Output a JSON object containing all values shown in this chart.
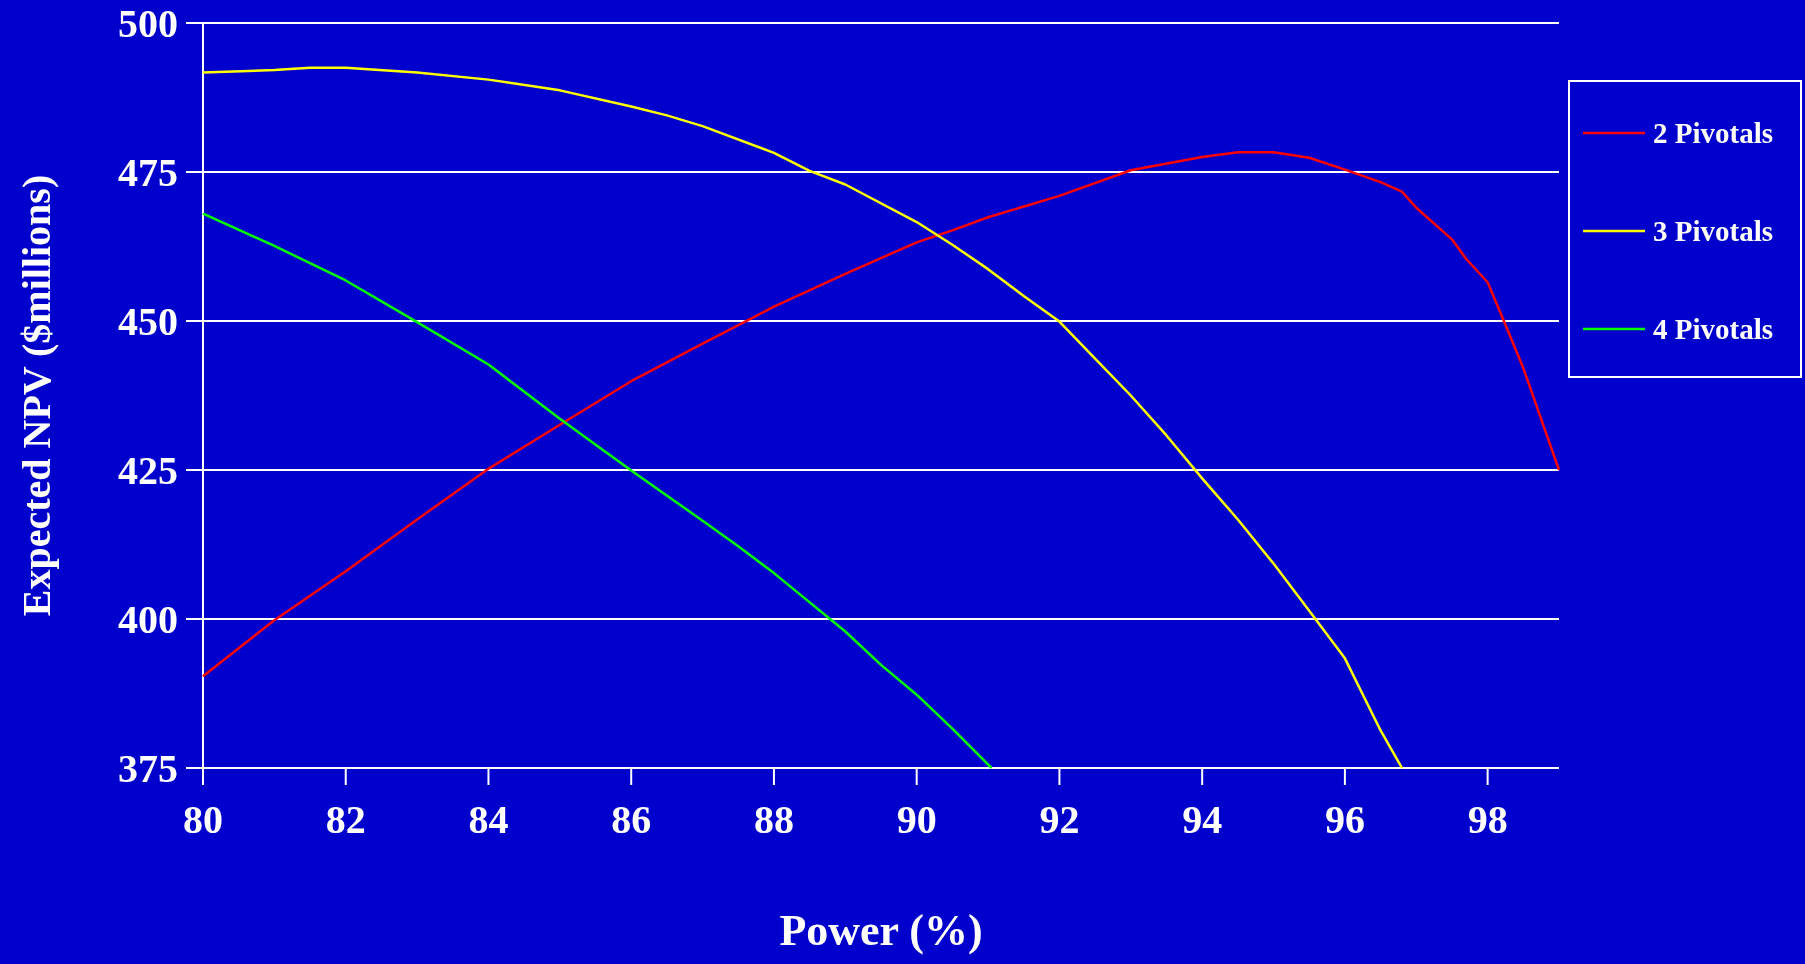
{
  "chart_data": {
    "type": "line",
    "xlabel": "Power (%)",
    "ylabel": "Expected NPV ($millions)",
    "xlim": [
      80,
      99
    ],
    "xticks": [
      80,
      82,
      84,
      86,
      88,
      90,
      92,
      94,
      96,
      98
    ],
    "ylim": [
      375,
      500
    ],
    "yticks": [
      375,
      400,
      425,
      450,
      475,
      500
    ],
    "grid": "y",
    "legend": "right",
    "marker": "none",
    "line_style": "solid",
    "series": [
      {
        "name": "2 Pivotals",
        "color": "#ff0000",
        "x": [
          80,
          81,
          82,
          83,
          84,
          85,
          86,
          87,
          88,
          89,
          90,
          90.5,
          91,
          92,
          93,
          94,
          94.5,
          95,
          95.5,
          96,
          96.5,
          96.8,
          97,
          97.5,
          97.7,
          98,
          98.2,
          98.5,
          99
        ],
        "values": [
          390.4,
          399.8,
          408,
          416.7,
          425.2,
          432.6,
          439.9,
          446.2,
          452.4,
          457.9,
          463.2,
          465.2,
          467.4,
          471,
          475.3,
          477.5,
          478.3,
          478.3,
          477.4,
          475.4,
          473.3,
          471.7,
          469,
          463.7,
          460.4,
          456.5,
          450.8,
          442.1,
          425
        ]
      },
      {
        "name": "3 Pivotals",
        "color": "#ffff00",
        "x": [
          80,
          81,
          81.5,
          82,
          83,
          84,
          85,
          86,
          86.5,
          87,
          88,
          88.5,
          89,
          90,
          90.5,
          91,
          91.5,
          92,
          92.5,
          93,
          93.5,
          94,
          94.5,
          95,
          95.5,
          96,
          96.5,
          96.8
        ],
        "values": [
          491.7,
          492.1,
          492.5,
          492.5,
          491.7,
          490.5,
          488.7,
          486,
          484.5,
          482.7,
          478.2,
          475.2,
          472.9,
          466.6,
          462.8,
          458.7,
          454.2,
          449.9,
          443.7,
          437.5,
          430.8,
          423.6,
          416.7,
          409.3,
          401.4,
          393.4,
          381.3,
          375
        ]
      },
      {
        "name": "4 Pivotals",
        "color": "#00ff00",
        "x": [
          80,
          81,
          82,
          83,
          84,
          85,
          86,
          87,
          87.5,
          88,
          89,
          89.5,
          90,
          90.5,
          91.05
        ],
        "values": [
          468,
          462.6,
          456.8,
          449.8,
          442.7,
          433.6,
          424.9,
          416.5,
          412.2,
          407.7,
          397.9,
          392.3,
          387.3,
          381.6,
          375
        ]
      }
    ]
  }
}
